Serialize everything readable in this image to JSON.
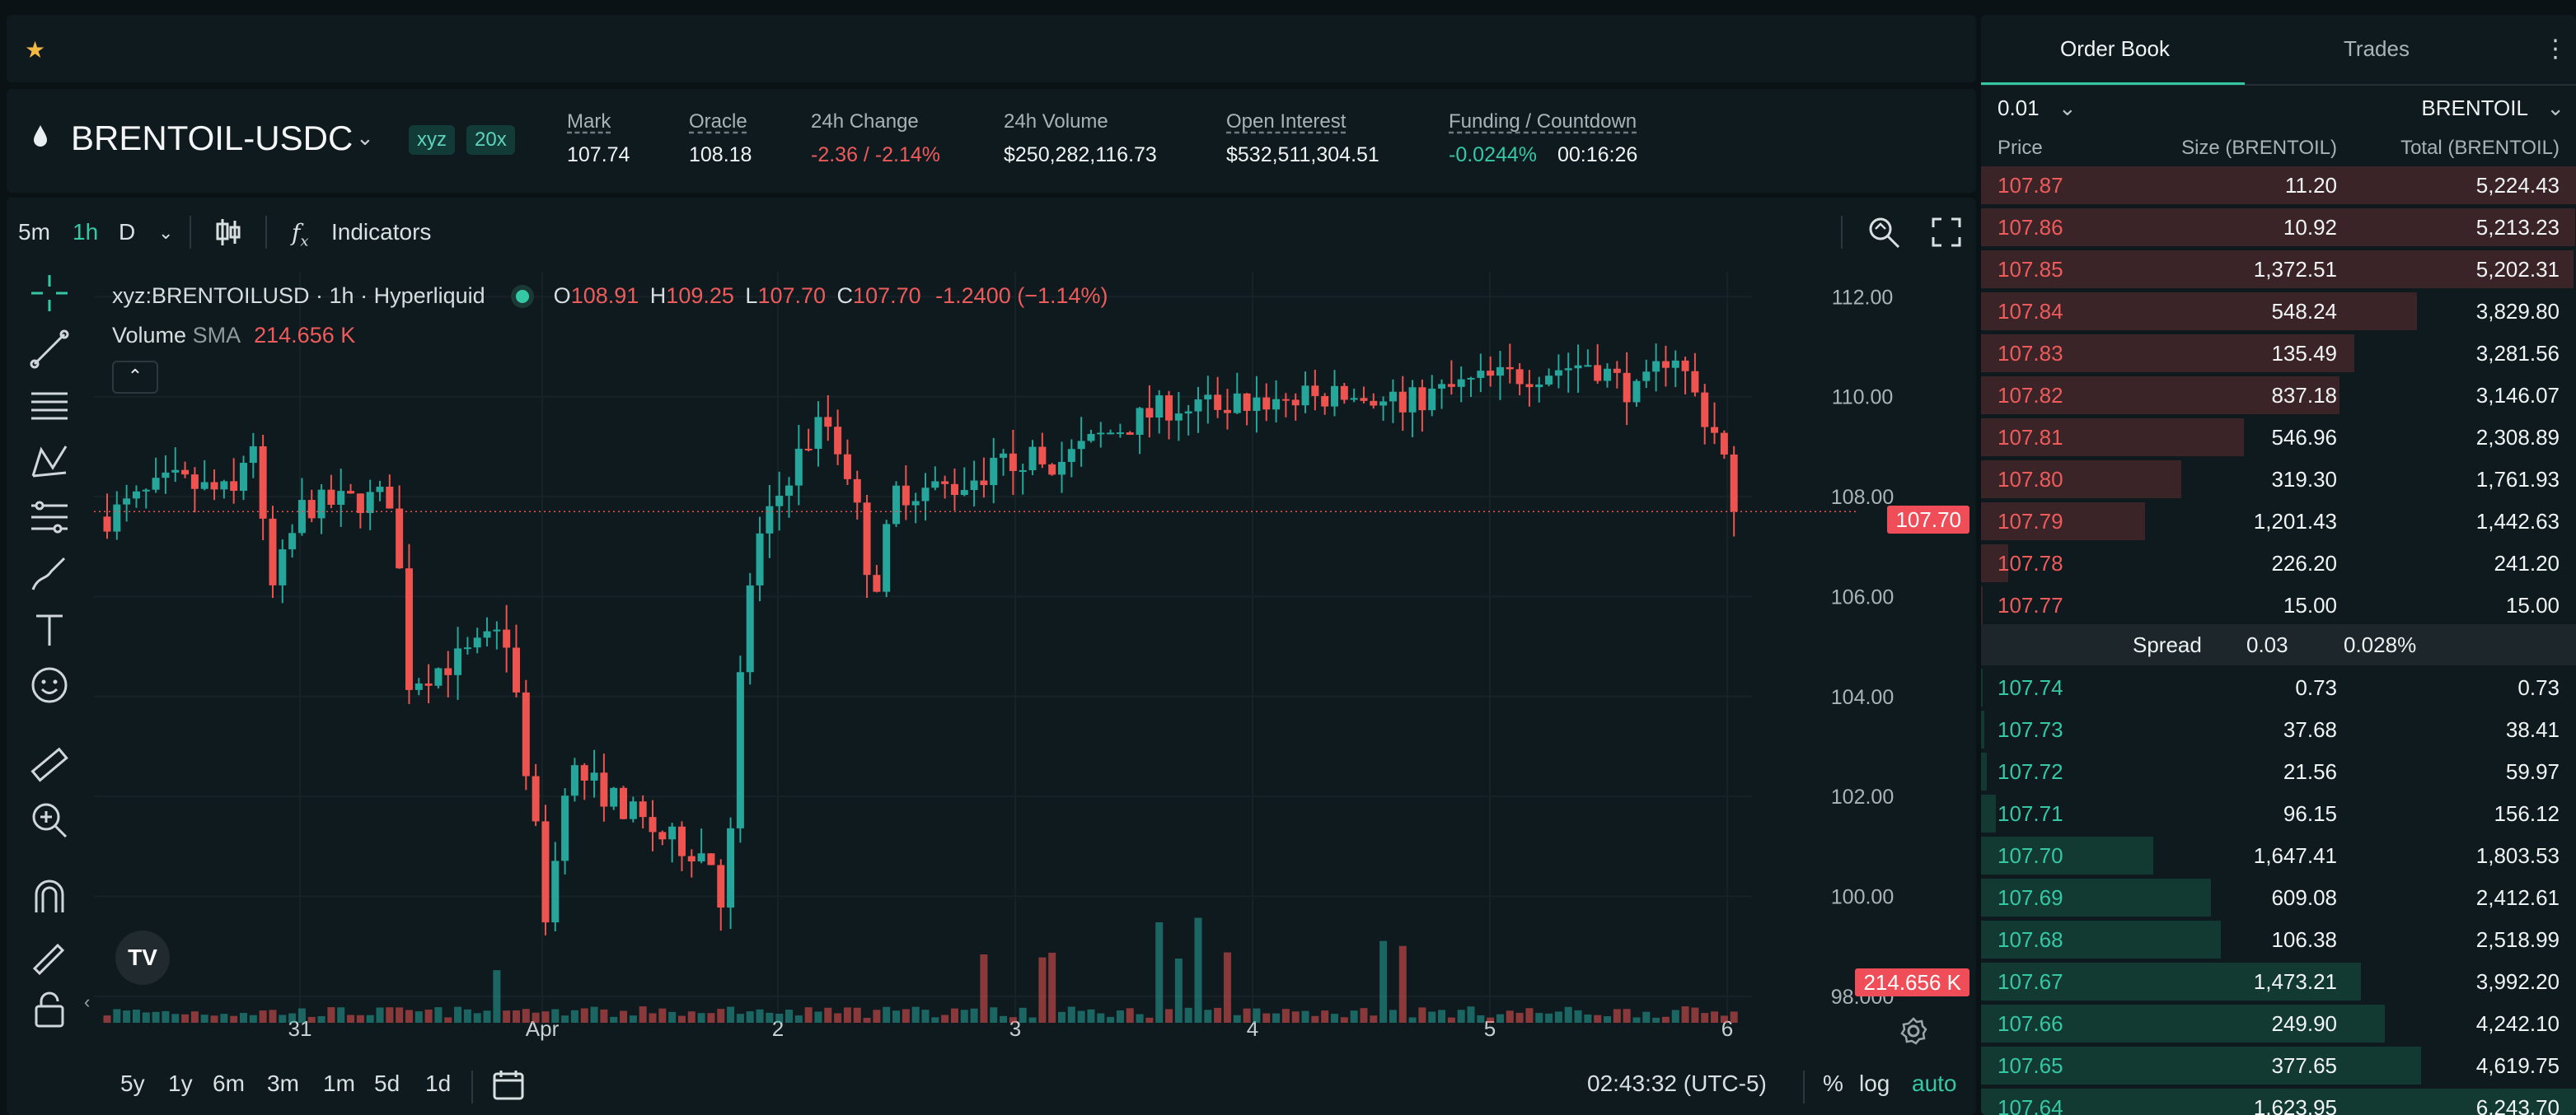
{
  "favorites": {
    "star_icon": "star-icon"
  },
  "market": {
    "symbol": "BRENTOIL-USDC",
    "tags": [
      "xyz",
      "20x"
    ],
    "stats": [
      {
        "label": "Mark",
        "value": "107.74"
      },
      {
        "label": "Oracle",
        "value": "108.18"
      },
      {
        "label": "24h Change",
        "value": "-2.36 / -2.14%"
      },
      {
        "label": "24h Volume",
        "value": "$250,282,116.73"
      },
      {
        "label": "Open Interest",
        "value": "$532,511,304.51"
      },
      {
        "label": "Funding / Countdown",
        "value": "-0.0244%",
        "value2": "00:16:26"
      }
    ]
  },
  "chart_toolbar": {
    "intervals": [
      "5m",
      "1h",
      "D"
    ],
    "active_interval": "1h",
    "indicators_label": "Indicators"
  },
  "legend": {
    "title": "xyz:BRENTOILUSD · 1h · Hyperliquid",
    "o_label": "O",
    "o": "108.91",
    "h_label": "H",
    "h": "109.25",
    "l_label": "L",
    "l": "107.70",
    "c_label": "C",
    "c": "107.70",
    "change": "-1.2400 (−1.14%)",
    "volume_label": "Volume",
    "sma_label": "SMA",
    "volume_value": "214.656 K"
  },
  "chart_data": {
    "type": "candlestick",
    "x_ticks": [
      "31",
      "Apr",
      "2",
      "3",
      "4",
      "5",
      "6"
    ],
    "y_ticks": [
      "112.00",
      "110.00",
      "108.00",
      "106.00",
      "104.00",
      "102.00",
      "100.00",
      "98.000"
    ],
    "ylim": [
      97.8,
      112.5
    ],
    "last_price": "107.70",
    "volume_last": "214.656 K",
    "up_color": "#26a69a",
    "down_color": "#ef5350"
  },
  "bottom_bar": {
    "ranges": [
      "5y",
      "1y",
      "6m",
      "3m",
      "1m",
      "5d",
      "1d"
    ],
    "time": "02:43:32 (UTC-5)",
    "percent": "%",
    "log": "log",
    "auto": "auto"
  },
  "order_book": {
    "tabs": [
      "Order Book",
      "Trades"
    ],
    "tick": "0.01",
    "unit": "BRENTOIL",
    "headers": {
      "price": "Price",
      "size": "Size (BRENTOIL)",
      "total": "Total (BRENTOIL)"
    },
    "asks": [
      {
        "price": "107.87",
        "size": "11.20",
        "total": "5,224.43",
        "depth": 1.0
      },
      {
        "price": "107.86",
        "size": "10.92",
        "total": "5,213.23",
        "depth": 0.998
      },
      {
        "price": "107.85",
        "size": "1,372.51",
        "total": "5,202.31",
        "depth": 0.996
      },
      {
        "price": "107.84",
        "size": "548.24",
        "total": "3,829.80",
        "depth": 0.733
      },
      {
        "price": "107.83",
        "size": "135.49",
        "total": "3,281.56",
        "depth": 0.628
      },
      {
        "price": "107.82",
        "size": "837.18",
        "total": "3,146.07",
        "depth": 0.602
      },
      {
        "price": "107.81",
        "size": "546.96",
        "total": "2,308.89",
        "depth": 0.442
      },
      {
        "price": "107.80",
        "size": "319.30",
        "total": "1,761.93",
        "depth": 0.337
      },
      {
        "price": "107.79",
        "size": "1,201.43",
        "total": "1,442.63",
        "depth": 0.276
      },
      {
        "price": "107.78",
        "size": "226.20",
        "total": "241.20",
        "depth": 0.046
      },
      {
        "price": "107.77",
        "size": "15.00",
        "total": "15.00",
        "depth": 0.003
      }
    ],
    "spread": {
      "label": "Spread",
      "value": "0.03",
      "pct": "0.028%"
    },
    "bids": [
      {
        "price": "107.74",
        "size": "0.73",
        "total": "0.73",
        "depth": 0.0001
      },
      {
        "price": "107.73",
        "size": "37.68",
        "total": "38.41",
        "depth": 0.006
      },
      {
        "price": "107.72",
        "size": "21.56",
        "total": "59.97",
        "depth": 0.01
      },
      {
        "price": "107.71",
        "size": "96.15",
        "total": "156.12",
        "depth": 0.025
      },
      {
        "price": "107.70",
        "size": "1,647.41",
        "total": "1,803.53",
        "depth": 0.289
      },
      {
        "price": "107.69",
        "size": "609.08",
        "total": "2,412.61",
        "depth": 0.386
      },
      {
        "price": "107.68",
        "size": "106.38",
        "total": "2,518.99",
        "depth": 0.403
      },
      {
        "price": "107.67",
        "size": "1,473.21",
        "total": "3,992.20",
        "depth": 0.639
      },
      {
        "price": "107.66",
        "size": "249.90",
        "total": "4,242.10",
        "depth": 0.679
      },
      {
        "price": "107.65",
        "size": "377.65",
        "total": "4,619.75",
        "depth": 0.74
      },
      {
        "price": "107.64",
        "size": "1,623.95",
        "total": "6,243.70",
        "depth": 1.0
      }
    ]
  }
}
